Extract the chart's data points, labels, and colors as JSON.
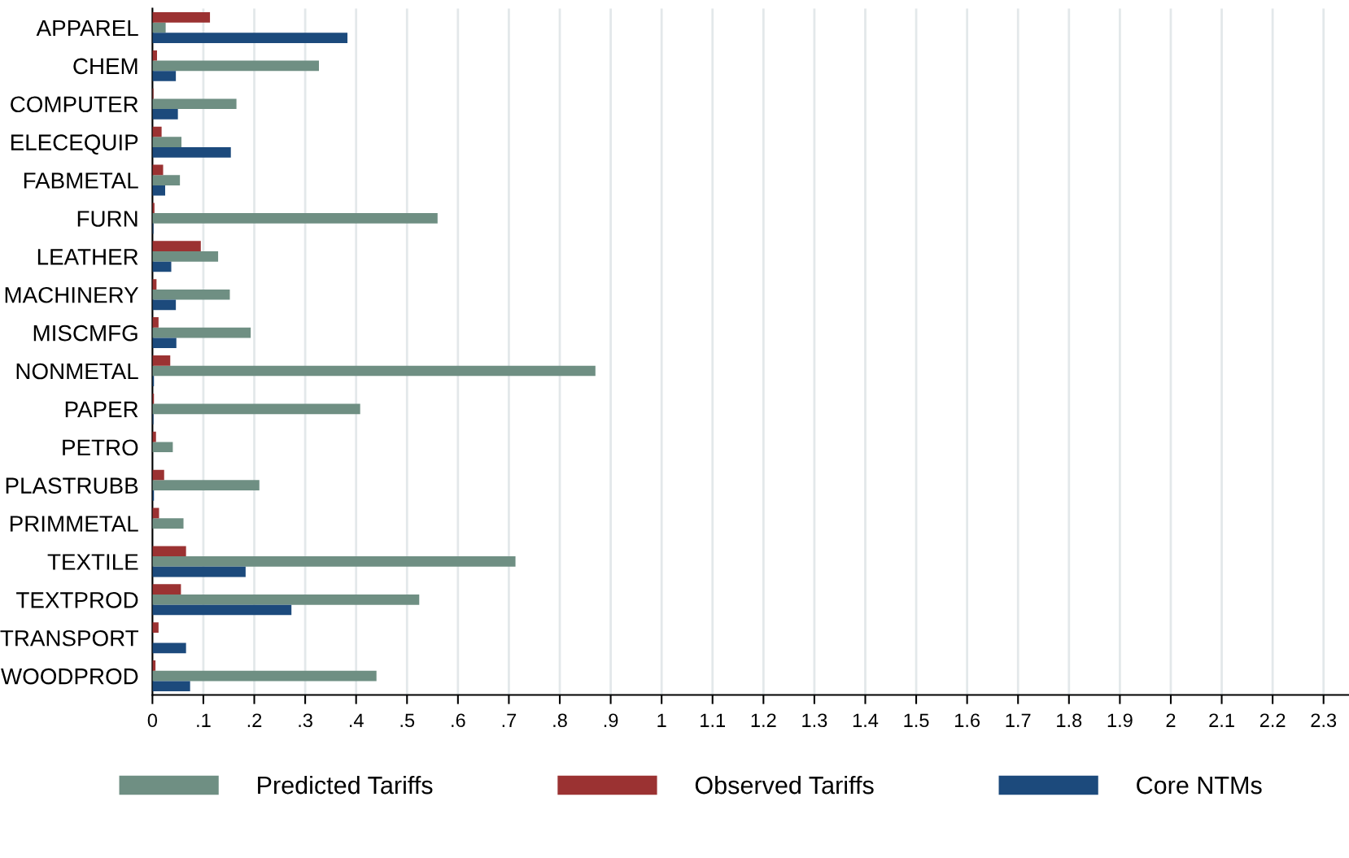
{
  "chart_data": {
    "type": "bar",
    "orientation": "horizontal",
    "categories": [
      "APPAREL",
      "CHEM",
      "COMPUTER",
      "ELECEQUIP",
      "FABMETAL",
      "FURN",
      "LEATHER",
      "MACHINERY",
      "MISCMFG",
      "NONMETAL",
      "PAPER",
      "PETRO",
      "PLASTRUBB",
      "PRIMMETAL",
      "TEXTILE",
      "TEXTPROD",
      "TRANSPORT",
      "WOODPROD"
    ],
    "series": [
      {
        "name": "Predicted Tariffs",
        "color": "#6f8f83",
        "values": [
          0.026,
          0.327,
          0.165,
          0.057,
          0.054,
          0.56,
          0.129,
          0.152,
          0.193,
          0.87,
          0.408,
          0.04,
          0.21,
          0.061,
          0.713,
          0.524,
          null,
          0.44
        ]
      },
      {
        "name": "Observed Tariffs",
        "color": "#9b3232",
        "values": [
          0.113,
          0.009,
          0.002,
          0.018,
          0.021,
          0.004,
          0.095,
          0.008,
          0.012,
          0.035,
          0.003,
          0.007,
          0.023,
          0.013,
          0.066,
          0.056,
          0.012,
          0.006
        ]
      },
      {
        "name": "Core NTMs",
        "color": "#1c4a7c",
        "values": [
          0.383,
          0.046,
          0.05,
          0.154,
          0.025,
          0.002,
          0.037,
          0.046,
          0.047,
          0.003,
          0.002,
          null,
          0.003,
          null,
          0.183,
          0.273,
          0.066,
          0.074
        ]
      }
    ],
    "xlim": [
      0,
      2.35
    ],
    "xticks": [
      0,
      {
        "value": 0.1,
        "label": ".1"
      },
      {
        "value": 0.2,
        "label": ".2"
      },
      {
        "value": 0.3,
        "label": ".3"
      },
      {
        "value": 0.4,
        "label": ".4"
      },
      {
        "value": 0.5,
        "label": ".5"
      },
      {
        "value": 0.6,
        "label": ".6"
      },
      {
        "value": 0.7,
        "label": ".7"
      },
      {
        "value": 0.8,
        "label": ".8"
      },
      {
        "value": 0.9,
        "label": ".9"
      },
      1,
      1.1,
      1.2,
      1.3,
      1.4,
      1.5,
      1.6,
      1.7,
      1.8,
      1.9,
      2,
      2.1,
      2.2,
      2.3
    ],
    "grid": "x",
    "legend": "bottom"
  }
}
